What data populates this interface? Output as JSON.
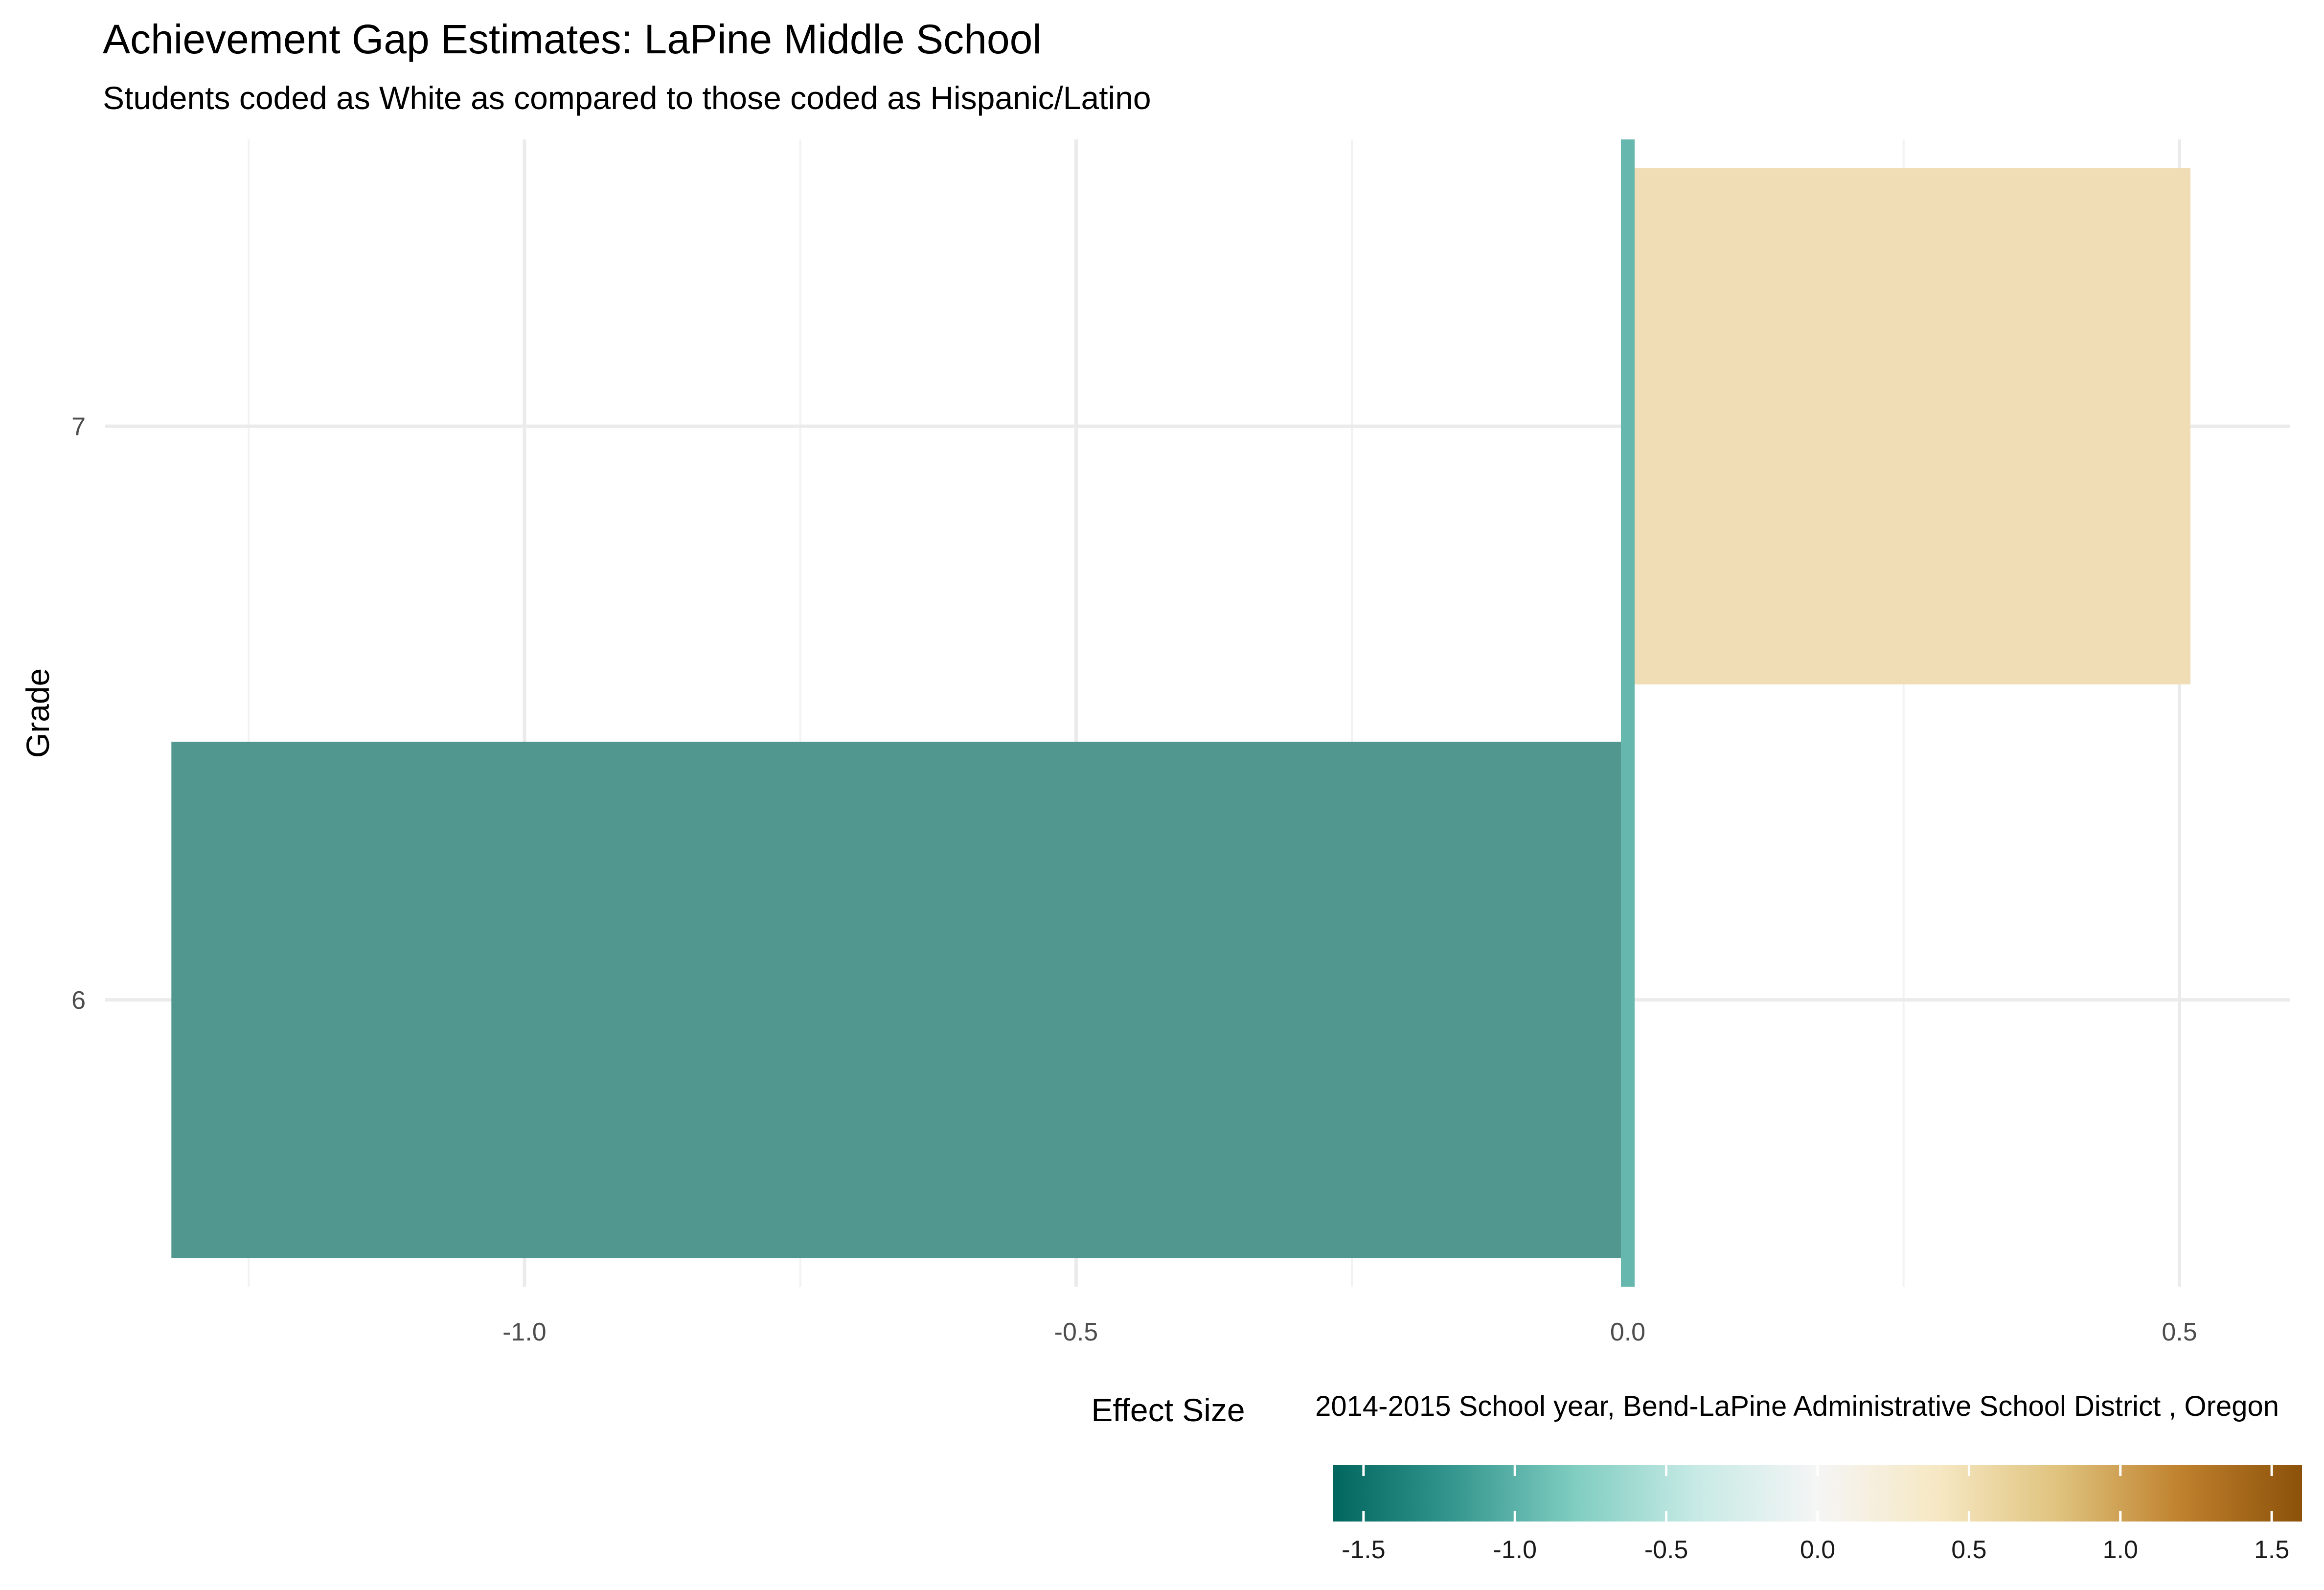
{
  "chart_data": {
    "type": "bar",
    "orientation": "horizontal",
    "title": "Achievement Gap Estimates: LaPine Middle School",
    "subtitle": "Students coded as White as compared to those coded as Hispanic/Latino",
    "xlabel": "Effect Size",
    "ylabel": "Grade",
    "caption": "2014-2015 School year,  Bend-LaPine Administrative School District , Oregon",
    "categories": [
      "6",
      "7"
    ],
    "values": [
      -1.32,
      0.51
    ],
    "bar_colors": [
      "#529690",
      "#F0DCB5"
    ],
    "xlim": [
      -1.38,
      0.6
    ],
    "x_ticks": [
      -1.0,
      -0.5,
      0.0,
      0.5
    ],
    "x_tick_labels": [
      "-1.0",
      "-0.5",
      "0.0",
      "0.5"
    ],
    "zero_line_color": "#66B7AE",
    "grid": true,
    "legend": {
      "type": "colorbar",
      "placement": "bottom-right",
      "range": [
        -1.6,
        1.6
      ],
      "ticks": [
        -1.5,
        -1.0,
        -0.5,
        0.0,
        0.5,
        1.0,
        1.5
      ],
      "tick_labels": [
        "-1.5",
        "-1.0",
        "-0.5",
        "0.0",
        "0.5",
        "1.0",
        "1.5"
      ],
      "gradient": [
        "#01665E",
        "#35978F",
        "#80CDC1",
        "#C7EAE5",
        "#F5F5F5",
        "#F6E8C3",
        "#DFC27D",
        "#BF812D",
        "#8C510A"
      ]
    }
  }
}
